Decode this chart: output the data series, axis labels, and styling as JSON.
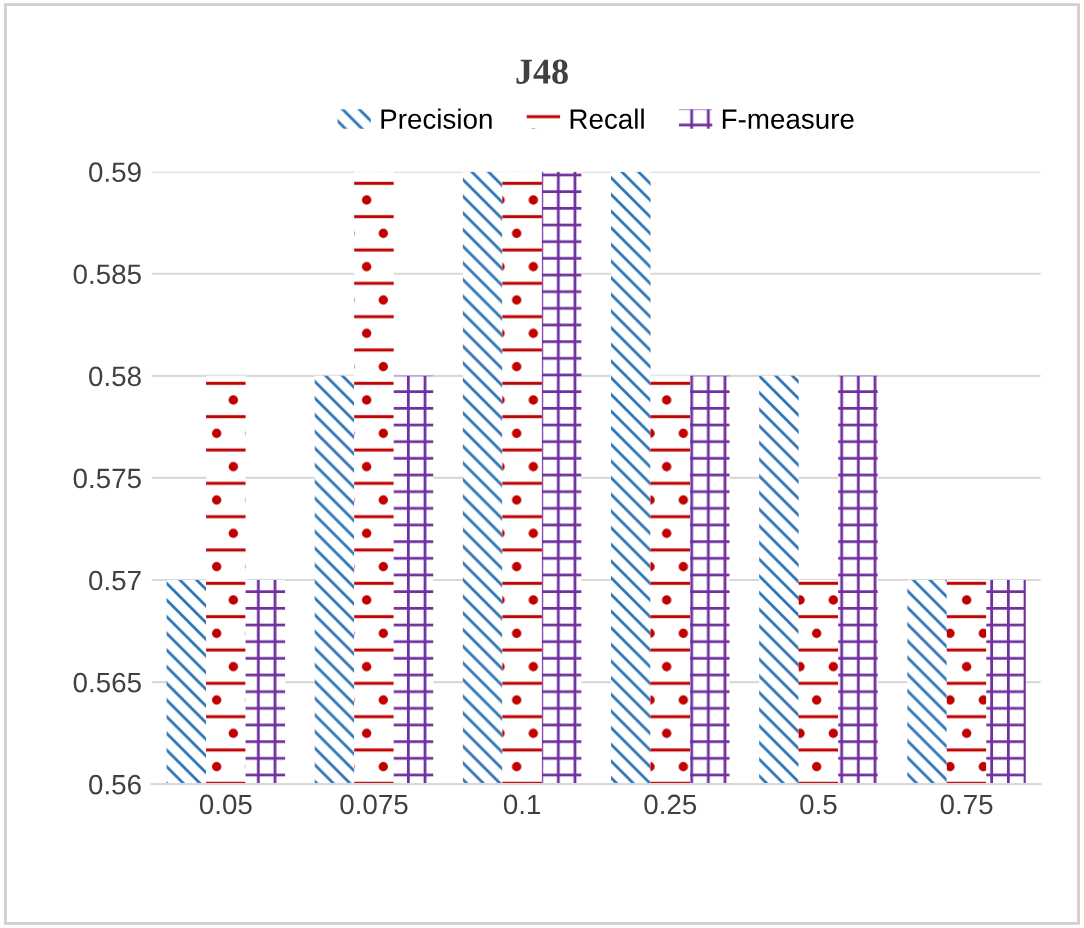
{
  "chart_data": {
    "type": "bar",
    "title": "J48",
    "categories": [
      "0.05",
      "0.075",
      "0.1",
      "0.25",
      "0.5",
      "0.75"
    ],
    "series": [
      {
        "name": "Precision",
        "color": "#2e75b6",
        "values": [
          0.57,
          0.58,
          0.59,
          0.59,
          0.58,
          0.57
        ]
      },
      {
        "name": "Recall",
        "color": "#c00000",
        "values": [
          0.58,
          0.59,
          0.59,
          0.58,
          0.57,
          0.57
        ]
      },
      {
        "name": "F-measure",
        "color": "#7030a0",
        "values": [
          0.57,
          0.58,
          0.59,
          0.58,
          0.58,
          0.57
        ]
      }
    ],
    "ylim": [
      0.56,
      0.59
    ],
    "yticks": [
      0.56,
      0.565,
      0.57,
      0.575,
      0.58,
      0.585,
      0.59
    ],
    "grid": "y",
    "legend": "top"
  }
}
